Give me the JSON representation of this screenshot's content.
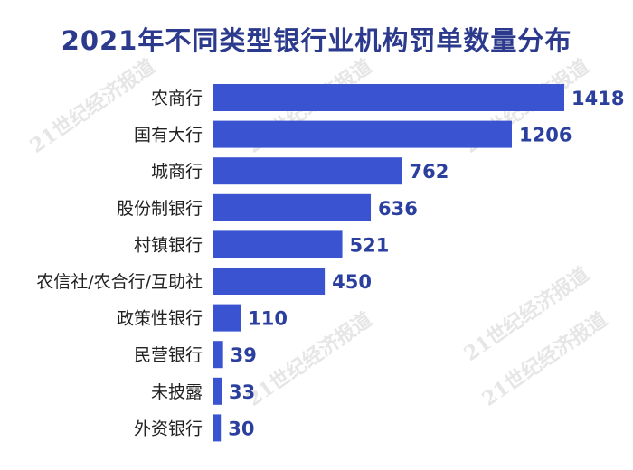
{
  "title": "2021年不同类型银行业机构罚单数量分布",
  "watermark": "21世纪经济报道",
  "colors": {
    "bar": "#3a53d1",
    "value_text": "#2b3f9e",
    "title_text": "#2b3a8c"
  },
  "chart_data": {
    "type": "bar",
    "orientation": "horizontal",
    "title": "2021年不同类型银行业机构罚单数量分布",
    "categories": [
      "农商行",
      "国有大行",
      "城商行",
      "股份制银行",
      "村镇银行",
      "农信社/农合行/互助社",
      "政策性银行",
      "民营银行",
      "未披露",
      "外资银行"
    ],
    "values": [
      1418,
      1206,
      762,
      636,
      521,
      450,
      110,
      39,
      33,
      30
    ],
    "xlim": [
      0,
      1418
    ],
    "grid": false,
    "legend": "none"
  }
}
